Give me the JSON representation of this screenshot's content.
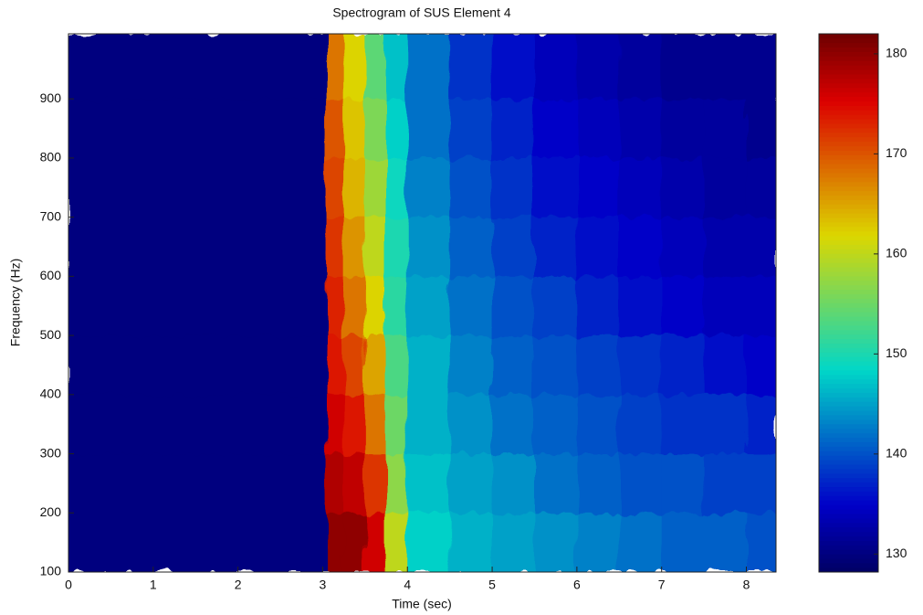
{
  "chart_data": {
    "type": "heatmap",
    "title": "Spectrogram of SUS Element 4",
    "x_label": "Time (sec)",
    "y_label": "Frequency (Hz)",
    "x_bins": [
      0,
      3.05,
      3.25,
      3.5,
      3.75,
      4,
      4.5,
      5,
      5.5,
      6,
      6.5,
      7,
      7.5,
      8,
      8.35
    ],
    "y_bins": [
      100,
      200,
      300,
      400,
      500,
      600,
      700,
      800,
      900,
      1010
    ],
    "z": [
      [
        130,
        180,
        180,
        176,
        160,
        148,
        146,
        145,
        144,
        143,
        142,
        141,
        141,
        140
      ],
      [
        130,
        178,
        177,
        172,
        157,
        147,
        145,
        144,
        142,
        141,
        140,
        140,
        139,
        139
      ],
      [
        130,
        176,
        174,
        168,
        155,
        146,
        144,
        142,
        141,
        140,
        139,
        138,
        138,
        137
      ],
      [
        130,
        174,
        171,
        165,
        153,
        146,
        143,
        141,
        140,
        139,
        138,
        137,
        136,
        135
      ],
      [
        130,
        173,
        168,
        162,
        151,
        145,
        142,
        140,
        139,
        137,
        136,
        135,
        134,
        134
      ],
      [
        130,
        172,
        166,
        160,
        150,
        144,
        141,
        139,
        137,
        136,
        135,
        134,
        133,
        133
      ],
      [
        130,
        171,
        164,
        158,
        149,
        143,
        140,
        138,
        136,
        135,
        134,
        133,
        132,
        132
      ],
      [
        130,
        170,
        163,
        156,
        148,
        142,
        139,
        137,
        135,
        134,
        133,
        132,
        132,
        131
      ],
      [
        130,
        168,
        162,
        154,
        147,
        142,
        138,
        136,
        134,
        133,
        132,
        131,
        131,
        131
      ]
    ],
    "colormap": "jet",
    "xlim": [
      0,
      8.35
    ],
    "xticks": [
      0,
      1,
      2,
      3,
      4,
      5,
      6,
      7,
      8
    ],
    "ylim": [
      100,
      1010
    ],
    "yticks": [
      100,
      200,
      300,
      400,
      500,
      600,
      700,
      800,
      900
    ],
    "clim": [
      128.2,
      182
    ],
    "cticks": [
      130,
      140,
      150,
      160,
      170,
      180
    ]
  }
}
